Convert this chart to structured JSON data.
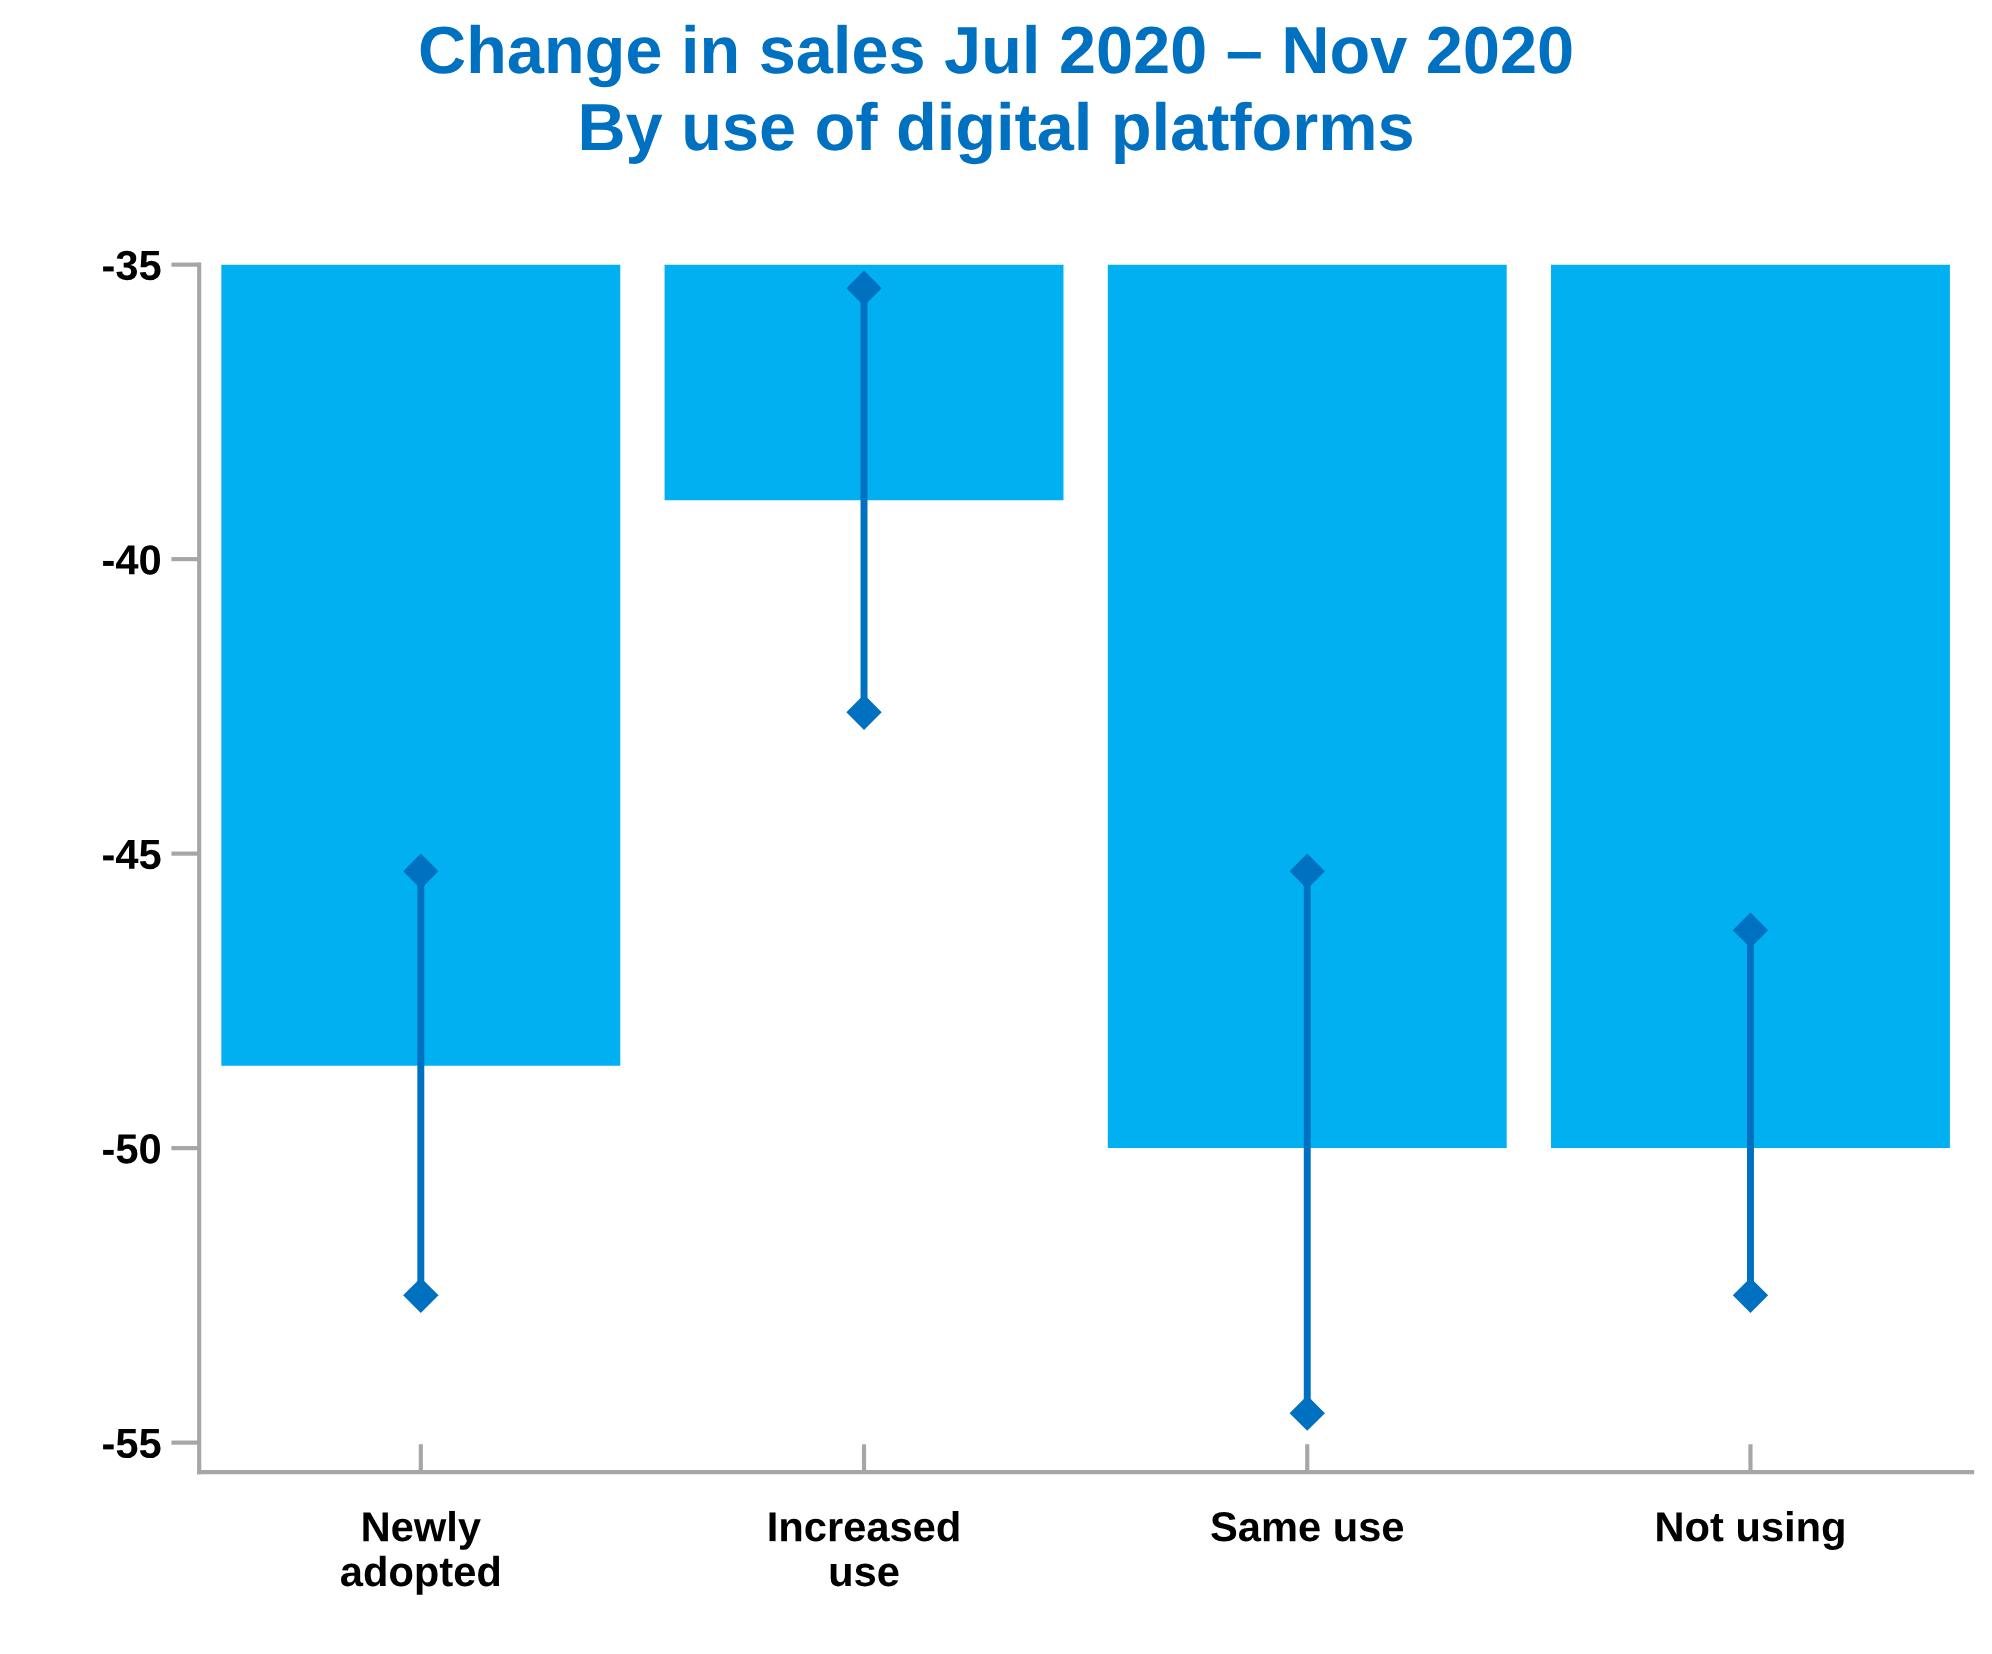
{
  "chart_data": {
    "type": "bar",
    "title": "Change in sales Jul 2020 – Nov 2020\nBy use of digital platforms",
    "categories": [
      "Newly\nadopted",
      "Increased\nuse",
      "Same use",
      "Not using"
    ],
    "series": [
      {
        "color": "#00b0f0",
        "values": [
          -48.6,
          -39,
          -50,
          -50
        ]
      },
      {
        "type": "line",
        "color": "#0070c0",
        "x": [
          "Newly\nadopted",
          "Newly\nadopted"
        ],
        "values": [
          -52.5,
          -45.3
        ]
      },
      {
        "type": "line",
        "color": "#0070c0",
        "x": [
          "Increased\nuse",
          "Increased\nuse"
        ],
        "values": [
          -42.6,
          -35.4
        ]
      },
      {
        "type": "line",
        "color": "#0070c0",
        "x": [
          "Same use",
          "Same use"
        ],
        "values": [
          -54.5,
          -45.3
        ]
      },
      {
        "type": "line",
        "color": "#0070c0",
        "x": [
          "Not using",
          "Not using"
        ],
        "values": [
          -52.5,
          -46.3
        ]
      }
    ],
    "marker": "diamond",
    "line_style": "solid",
    "ylim": [
      -55.5,
      -35
    ],
    "yticks": [
      -35,
      -40,
      -45,
      -50,
      -55
    ],
    "grid": false,
    "legend": false
  }
}
